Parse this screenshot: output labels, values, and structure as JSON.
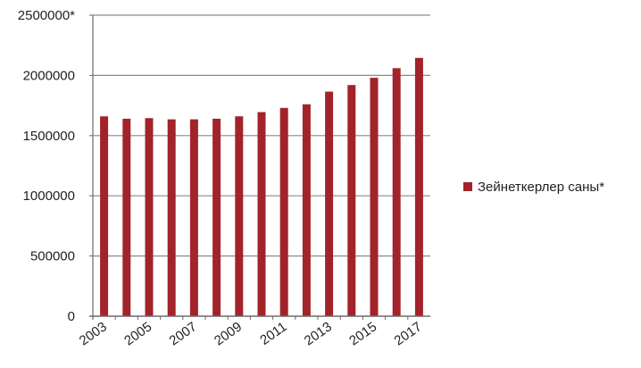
{
  "chart_data": {
    "type": "bar",
    "categories": [
      "2003",
      "2004",
      "2005",
      "2006",
      "2007",
      "2008",
      "2009",
      "2010",
      "2011",
      "2012",
      "2013",
      "2014",
      "2015",
      "2016",
      "2017"
    ],
    "series": [
      {
        "name": "Зейнеткерлер саны*",
        "color": "#a3232b",
        "values": [
          1660000,
          1640000,
          1645000,
          1635000,
          1635000,
          1640000,
          1660000,
          1695000,
          1730000,
          1760000,
          1865000,
          1920000,
          1980000,
          2060000,
          2145000
        ]
      }
    ],
    "x_tick_labels": [
      "2003",
      "2005",
      "2007",
      "2009",
      "2011",
      "2013",
      "2015",
      "2017"
    ],
    "y_ticks": [
      {
        "value": 0,
        "label": "0"
      },
      {
        "value": 500000,
        "label": "500000"
      },
      {
        "value": 1000000,
        "label": "1000000"
      },
      {
        "value": 1500000,
        "label": "1500000"
      },
      {
        "value": 2000000,
        "label": "2000000"
      },
      {
        "value": 2500000,
        "label": "2500000*"
      }
    ],
    "ylim": [
      0,
      2500000
    ],
    "grid": true,
    "legend_position": "right",
    "title": "",
    "xlabel": "",
    "ylabel": ""
  }
}
